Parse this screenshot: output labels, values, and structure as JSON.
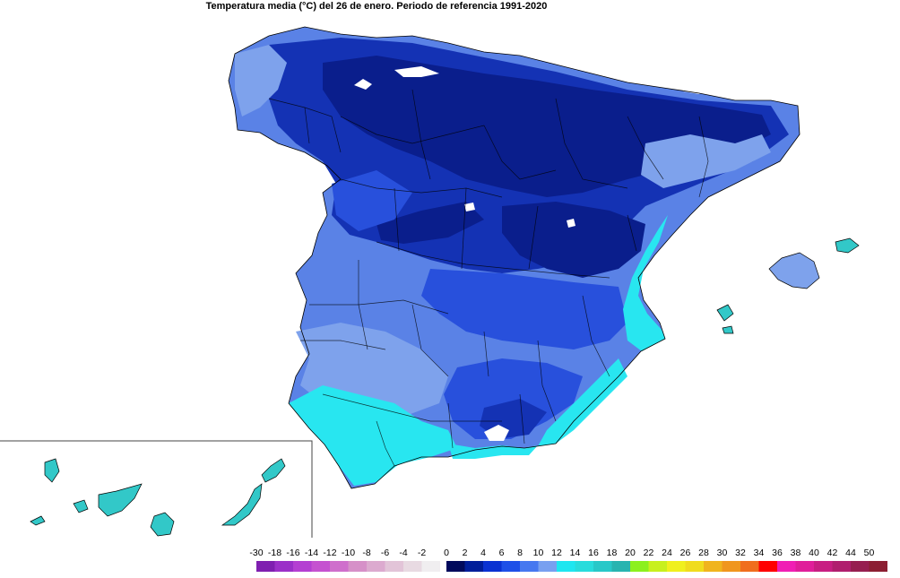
{
  "title": "Temperatura media (°C) del 26 de enero. Periodo de referencia 1991-2020",
  "legend": {
    "negative": [
      {
        "label": "-30",
        "color": "#7f1fb0"
      },
      {
        "label": "-18",
        "color": "#9b30c8"
      },
      {
        "label": "-16",
        "color": "#b43fd2"
      },
      {
        "label": "-14",
        "color": "#c552d0"
      },
      {
        "label": "-12",
        "color": "#cf6fcc"
      },
      {
        "label": "-10",
        "color": "#d690c8"
      },
      {
        "label": "-8",
        "color": "#dcaacf"
      },
      {
        "label": "-6",
        "color": "#e2c4d8"
      },
      {
        "label": "-4",
        "color": "#e8dae2"
      },
      {
        "label": "-2",
        "color": "#f0eef0"
      }
    ],
    "positive": [
      {
        "label": "0",
        "color": "#000a5c"
      },
      {
        "label": "2",
        "color": "#001e9a"
      },
      {
        "label": "4",
        "color": "#0a32d2"
      },
      {
        "label": "6",
        "color": "#1e50e8"
      },
      {
        "label": "8",
        "color": "#4678f0"
      },
      {
        "label": "10",
        "color": "#78a0f0"
      },
      {
        "label": "12",
        "color": "#1ee6f0"
      },
      {
        "label": "14",
        "color": "#28dcdc"
      },
      {
        "label": "16",
        "color": "#28c8c8"
      },
      {
        "label": "18",
        "color": "#28b4b0"
      },
      {
        "label": "20",
        "color": "#8cf01e"
      },
      {
        "label": "22",
        "color": "#c8f01e"
      },
      {
        "label": "24",
        "color": "#f0f01e"
      },
      {
        "label": "26",
        "color": "#f0dc1e"
      },
      {
        "label": "28",
        "color": "#f0b41e"
      },
      {
        "label": "30",
        "color": "#f0961e"
      },
      {
        "label": "32",
        "color": "#f06e1e"
      },
      {
        "label": "34",
        "color": "#ff0000"
      },
      {
        "label": "36",
        "color": "#f01eb4"
      },
      {
        "label": "38",
        "color": "#e01e9a"
      },
      {
        "label": "40",
        "color": "#c81e82"
      },
      {
        "label": "42",
        "color": "#b01e6e"
      },
      {
        "label": "44",
        "color": "#961e50"
      },
      {
        "label": "50",
        "color": "#8c1e32"
      }
    ]
  },
  "colors": {
    "deep": "#0a1e8c",
    "dark": "#1432b4",
    "mid": "#2850dc",
    "light": "#5a82e6",
    "pale": "#7ea2ec",
    "cyan": "#28e6f0",
    "teal": "#32c8c8",
    "snow": "#ffffff"
  }
}
